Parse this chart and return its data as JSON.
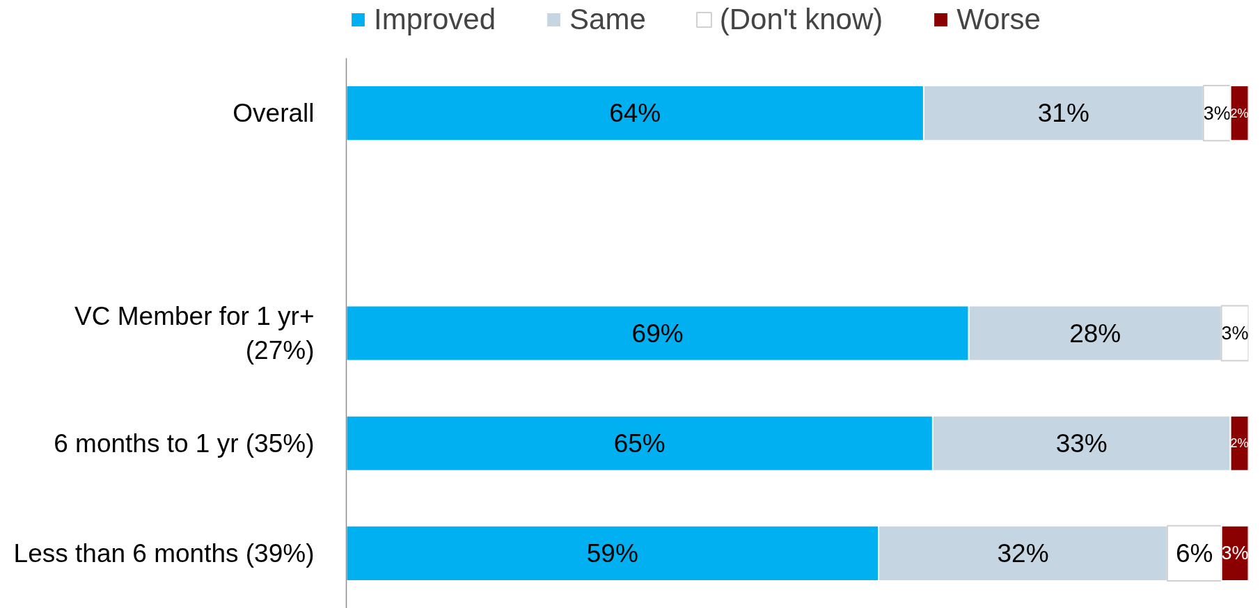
{
  "chart_data": {
    "type": "bar",
    "orientation": "horizontal",
    "stacked": true,
    "categories": [
      "Overall",
      null,
      "VC Member for 1 yr+\n(27%)",
      "6 months to 1 yr (35%)",
      "Less than 6 months (39%)"
    ],
    "series": [
      {
        "name": "Improved",
        "color": "#00b0f0",
        "values": [
          64,
          null,
          69,
          65,
          59
        ],
        "value_labels": [
          "64%",
          null,
          "69%",
          "65%",
          "59%"
        ]
      },
      {
        "name": "Same",
        "color": "#c5d5e2",
        "values": [
          31,
          null,
          28,
          33,
          32
        ],
        "value_labels": [
          "31%",
          null,
          "28%",
          "33%",
          "32%"
        ]
      },
      {
        "name": "(Don't know)",
        "color": "#ffffff",
        "values": [
          3,
          null,
          3,
          null,
          6
        ],
        "value_labels": [
          "3%",
          null,
          "3%",
          null,
          "6%"
        ]
      },
      {
        "name": "Worse",
        "color": "#8b0000",
        "values": [
          2,
          null,
          null,
          2,
          3
        ],
        "value_labels": [
          "2%",
          null,
          null,
          "2%",
          "3%"
        ]
      }
    ],
    "xlim": [
      0,
      100
    ],
    "tick_labels": "y",
    "legend": "top"
  }
}
